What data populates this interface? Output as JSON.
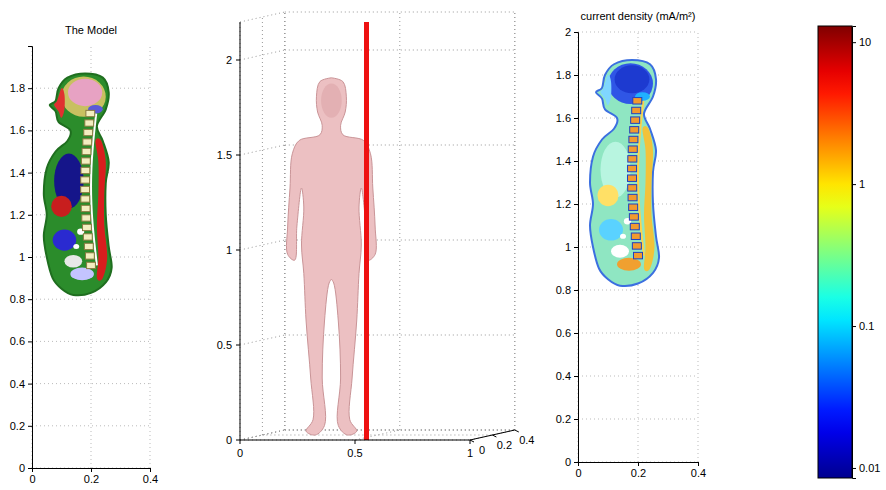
{
  "chart_data": [
    {
      "type": "image",
      "title": "The Model",
      "xlim": [
        0,
        0.4
      ],
      "xticks": [
        0,
        0.2,
        0.4
      ],
      "ylim": [
        0,
        2
      ],
      "yticks": [
        0,
        0.2,
        0.4,
        0.6,
        0.8,
        1,
        1.2,
        1.4,
        1.6,
        1.8
      ],
      "grid": true
    },
    {
      "type": "surface3d",
      "xlim": [
        0,
        1
      ],
      "xticks": [
        0,
        0.5,
        1
      ],
      "ylim": [
        0,
        0.4
      ],
      "yticks": [
        0,
        0.2,
        0.4
      ],
      "zlim": [
        0,
        2.2
      ],
      "zticks": [
        0,
        0.5,
        1,
        1.5,
        2
      ],
      "slice_x": 0.55,
      "grid": true
    },
    {
      "type": "image",
      "title": "current density (mA/m²)",
      "xlim": [
        0,
        0.4
      ],
      "xticks": [
        0,
        0.2,
        0.4
      ],
      "ylim": [
        0,
        2
      ],
      "yticks": [
        0,
        0.2,
        0.4,
        0.6,
        0.8,
        1,
        1.2,
        1.4,
        1.6,
        1.8,
        2
      ],
      "grid": true
    },
    {
      "type": "colorbar",
      "log": "y",
      "ylim": [
        0.0085,
        13
      ],
      "yticks": [
        0.01,
        0.1,
        1,
        10
      ]
    }
  ]
}
